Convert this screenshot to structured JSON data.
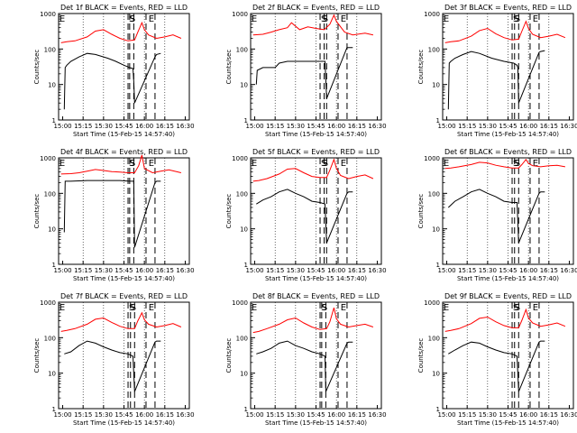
{
  "time_ticks": [
    "15:00",
    "15:15",
    "15:30",
    "15:45",
    "16:00",
    "16:15",
    "16:30"
  ],
  "y_ticks": [
    "1",
    "10",
    "100",
    "1000"
  ],
  "ylabel": "Counts/sec",
  "xlabel": "Start Time (15-Feb-15 14:57:40)",
  "colors": {
    "events": "#000000",
    "lld": "#ff0000"
  },
  "chart_data": [
    {
      "type": "line",
      "title": "Det 1f BLACK = Events, RED = LLD",
      "markers": [
        "E",
        "S",
        "S",
        "E"
      ],
      "dashed": [
        15.8,
        15.82,
        15.87,
        16.02,
        16.13
      ],
      "ylim_log": [
        0,
        3
      ],
      "series": [
        {
          "name": "Events",
          "color": "#000000",
          "x": [
            15.02,
            15.03,
            15.05,
            15.1,
            15.2,
            15.3,
            15.4,
            15.55,
            15.65,
            15.75,
            15.82,
            15.86,
            15.87,
            15.88,
            16.13,
            16.15,
            16.2
          ],
          "y": [
            2,
            30,
            35,
            45,
            60,
            75,
            70,
            55,
            45,
            35,
            30,
            28,
            12,
            3,
            60,
            70,
            75
          ]
        },
        {
          "name": "LLD",
          "color": "#ff0000",
          "x": [
            14.98,
            15.05,
            15.15,
            15.3,
            15.4,
            15.5,
            15.6,
            15.7,
            15.8,
            15.88,
            15.92,
            15.97,
            16.0,
            16.05,
            16.15,
            16.25,
            16.35,
            16.45
          ],
          "y": [
            150,
            160,
            170,
            220,
            320,
            350,
            260,
            200,
            170,
            180,
            300,
            550,
            350,
            250,
            200,
            220,
            250,
            200
          ]
        }
      ]
    },
    {
      "type": "line",
      "title": "Det 2f BLACK = Events, RED = LLD",
      "markers": [
        "E",
        "S",
        "S",
        "E"
      ],
      "dashed": [
        15.8,
        15.85,
        15.88,
        16.02,
        16.13
      ],
      "ylim_log": [
        0,
        3
      ],
      "series": [
        {
          "name": "Events",
          "color": "#000000",
          "x": [
            15.02,
            15.03,
            15.1,
            15.25,
            15.3,
            15.4,
            15.55,
            15.7,
            15.8,
            15.86,
            15.88,
            16.13,
            16.15,
            16.2
          ],
          "y": [
            10,
            25,
            30,
            30,
            40,
            45,
            45,
            45,
            45,
            45,
            4,
            110,
            110,
            110
          ]
        },
        {
          "name": "LLD",
          "color": "#ff0000",
          "x": [
            14.98,
            15.1,
            15.2,
            15.3,
            15.4,
            15.45,
            15.55,
            15.65,
            15.75,
            15.85,
            15.92,
            15.97,
            16.0,
            16.1,
            16.2,
            16.35,
            16.45
          ],
          "y": [
            250,
            260,
            300,
            350,
            400,
            550,
            350,
            420,
            380,
            350,
            500,
            900,
            600,
            300,
            250,
            280,
            250
          ]
        }
      ]
    },
    {
      "type": "line",
      "title": "Det 3f BLACK = Events, RED = LLD",
      "markers": [
        "E",
        "S",
        "S",
        "E"
      ],
      "dashed": [
        15.8,
        15.83,
        15.88,
        16.02,
        16.13
      ],
      "ylim_log": [
        0,
        3
      ],
      "series": [
        {
          "name": "Events",
          "color": "#000000",
          "x": [
            15.02,
            15.03,
            15.05,
            15.1,
            15.2,
            15.3,
            15.4,
            15.55,
            15.7,
            15.82,
            15.86,
            15.87,
            15.88,
            16.13,
            16.15,
            16.2
          ],
          "y": [
            2,
            40,
            45,
            55,
            70,
            85,
            75,
            55,
            45,
            40,
            35,
            30,
            3,
            80,
            85,
            90
          ]
        },
        {
          "name": "LLD",
          "color": "#ff0000",
          "x": [
            14.98,
            15.05,
            15.15,
            15.3,
            15.4,
            15.5,
            15.6,
            15.7,
            15.8,
            15.88,
            15.92,
            15.97,
            16.0,
            16.05,
            16.15,
            16.25,
            16.35,
            16.45
          ],
          "y": [
            150,
            160,
            170,
            230,
            330,
            380,
            270,
            210,
            180,
            190,
            320,
            600,
            380,
            260,
            210,
            230,
            260,
            210
          ]
        }
      ]
    },
    {
      "type": "line",
      "title": "Det 4f BLACK = Events, RED = LLD",
      "markers": [
        "E",
        "S",
        "S",
        "E"
      ],
      "dashed": [
        15.8,
        15.82,
        15.87,
        16.02,
        16.13
      ],
      "ylim_log": [
        0,
        3
      ],
      "series": [
        {
          "name": "Events",
          "color": "#000000",
          "x": [
            15.02,
            15.03,
            15.1,
            15.3,
            15.5,
            15.7,
            15.82,
            15.86,
            15.87,
            15.88,
            16.13,
            16.15,
            16.2
          ],
          "y": [
            8,
            220,
            220,
            230,
            230,
            230,
            220,
            220,
            220,
            3,
            200,
            220,
            220
          ]
        },
        {
          "name": "LLD",
          "color": "#ff0000",
          "x": [
            14.98,
            15.1,
            15.2,
            15.3,
            15.4,
            15.5,
            15.6,
            15.7,
            15.8,
            15.88,
            15.93,
            15.97,
            16.0,
            16.1,
            16.2,
            16.3,
            16.45
          ],
          "y": [
            350,
            360,
            380,
            420,
            470,
            440,
            410,
            400,
            380,
            380,
            600,
            1200,
            500,
            380,
            420,
            460,
            380
          ]
        }
      ]
    },
    {
      "type": "line",
      "title": "Det 5f BLACK = Events, RED = LLD",
      "markers": [
        "E",
        "S",
        "S",
        "E"
      ],
      "dashed": [
        15.8,
        15.85,
        15.88,
        16.02,
        16.13
      ],
      "ylim_log": [
        0,
        3
      ],
      "series": [
        {
          "name": "Events",
          "color": "#000000",
          "x": [
            15.02,
            15.1,
            15.2,
            15.3,
            15.4,
            15.5,
            15.6,
            15.7,
            15.8,
            15.86,
            15.88,
            16.13,
            16.15,
            16.2
          ],
          "y": [
            50,
            65,
            80,
            110,
            130,
            100,
            80,
            60,
            55,
            50,
            4,
            100,
            110,
            110
          ]
        },
        {
          "name": "LLD",
          "color": "#ff0000",
          "x": [
            14.98,
            15.05,
            15.15,
            15.3,
            15.4,
            15.5,
            15.6,
            15.7,
            15.8,
            15.88,
            15.92,
            15.97,
            16.0,
            16.05,
            16.15,
            16.25,
            16.35,
            16.45
          ],
          "y": [
            220,
            230,
            260,
            350,
            480,
            500,
            380,
            300,
            280,
            280,
            450,
            900,
            500,
            320,
            260,
            300,
            330,
            260
          ]
        }
      ]
    },
    {
      "type": "line",
      "title": "Det 6f BLACK = Events, RED = LLD",
      "markers": [
        "E",
        "S",
        "S",
        "E"
      ],
      "dashed": [
        15.8,
        15.83,
        15.88,
        16.02,
        16.13
      ],
      "ylim_log": [
        0,
        3
      ],
      "series": [
        {
          "name": "Events",
          "color": "#000000",
          "x": [
            15.02,
            15.1,
            15.2,
            15.3,
            15.4,
            15.5,
            15.6,
            15.7,
            15.8,
            15.86,
            15.88,
            16.13,
            16.15,
            16.2
          ],
          "y": [
            40,
            60,
            80,
            110,
            130,
            100,
            80,
            60,
            55,
            55,
            4,
            100,
            110,
            110
          ]
        },
        {
          "name": "LLD",
          "color": "#ff0000",
          "x": [
            14.98,
            15.05,
            15.15,
            15.3,
            15.4,
            15.5,
            15.6,
            15.7,
            15.8,
            15.88,
            15.92,
            15.97,
            16.0,
            16.05,
            16.15,
            16.25,
            16.35,
            16.45
          ],
          "y": [
            500,
            520,
            560,
            650,
            750,
            720,
            620,
            560,
            520,
            520,
            650,
            900,
            700,
            600,
            560,
            600,
            620,
            560
          ]
        }
      ]
    },
    {
      "type": "line",
      "title": "Det 7f BLACK = Events, RED = LLD",
      "markers": [
        "E",
        "S",
        "S",
        "E"
      ],
      "dashed": [
        15.8,
        15.83,
        15.88,
        16.02,
        16.13
      ],
      "ylim_log": [
        0,
        3
      ],
      "series": [
        {
          "name": "Events",
          "color": "#000000",
          "x": [
            15.02,
            15.1,
            15.2,
            15.3,
            15.4,
            15.5,
            15.6,
            15.7,
            15.8,
            15.86,
            15.88,
            16.13,
            16.15,
            16.2
          ],
          "y": [
            35,
            40,
            60,
            80,
            70,
            55,
            45,
            38,
            35,
            30,
            3,
            75,
            80,
            80
          ]
        },
        {
          "name": "LLD",
          "color": "#ff0000",
          "x": [
            14.98,
            15.05,
            15.15,
            15.3,
            15.4,
            15.5,
            15.6,
            15.7,
            15.8,
            15.88,
            15.92,
            15.97,
            16.0,
            16.05,
            16.15,
            16.25,
            16.35,
            16.45
          ],
          "y": [
            150,
            160,
            180,
            240,
            330,
            360,
            270,
            210,
            180,
            180,
            300,
            500,
            320,
            240,
            200,
            220,
            250,
            200
          ]
        }
      ]
    },
    {
      "type": "line",
      "title": "Det 8f BLACK = Events, RED = LLD",
      "markers": [
        "E",
        "S",
        "S",
        "E"
      ],
      "dashed": [
        15.8,
        15.82,
        15.87,
        16.02,
        16.13
      ],
      "ylim_log": [
        0,
        3
      ],
      "series": [
        {
          "name": "Events",
          "color": "#000000",
          "x": [
            15.02,
            15.1,
            15.2,
            15.3,
            15.4,
            15.5,
            15.6,
            15.7,
            15.8,
            15.86,
            15.87,
            16.13,
            16.15,
            16.2
          ],
          "y": [
            35,
            40,
            50,
            70,
            80,
            60,
            50,
            40,
            35,
            30,
            3,
            70,
            75,
            75
          ]
        },
        {
          "name": "LLD",
          "color": "#ff0000",
          "x": [
            14.98,
            15.05,
            15.15,
            15.3,
            15.4,
            15.5,
            15.6,
            15.7,
            15.8,
            15.88,
            15.92,
            15.97,
            16.0,
            16.05,
            16.15,
            16.25,
            16.35,
            16.45
          ],
          "y": [
            140,
            150,
            180,
            240,
            320,
            360,
            260,
            200,
            170,
            180,
            280,
            700,
            340,
            240,
            200,
            220,
            240,
            200
          ]
        }
      ]
    },
    {
      "type": "line",
      "title": "Det 9f BLACK = Events, RED = LLD",
      "markers": [
        "E",
        "S",
        "S",
        "E"
      ],
      "dashed": [
        15.8,
        15.83,
        15.88,
        16.02,
        16.13
      ],
      "ylim_log": [
        0,
        3
      ],
      "series": [
        {
          "name": "Events",
          "color": "#000000",
          "x": [
            15.02,
            15.1,
            15.2,
            15.3,
            15.4,
            15.5,
            15.6,
            15.7,
            15.8,
            15.86,
            15.88,
            16.13,
            16.15,
            16.2
          ],
          "y": [
            35,
            45,
            60,
            75,
            70,
            55,
            45,
            38,
            35,
            30,
            3,
            75,
            80,
            80
          ]
        },
        {
          "name": "LLD",
          "color": "#ff0000",
          "x": [
            14.98,
            15.05,
            15.15,
            15.3,
            15.4,
            15.5,
            15.6,
            15.7,
            15.8,
            15.88,
            15.92,
            15.97,
            16.0,
            16.05,
            16.15,
            16.25,
            16.35,
            16.45
          ],
          "y": [
            150,
            160,
            180,
            250,
            350,
            380,
            280,
            220,
            190,
            190,
            310,
            620,
            360,
            260,
            210,
            230,
            260,
            210
          ]
        }
      ]
    }
  ]
}
